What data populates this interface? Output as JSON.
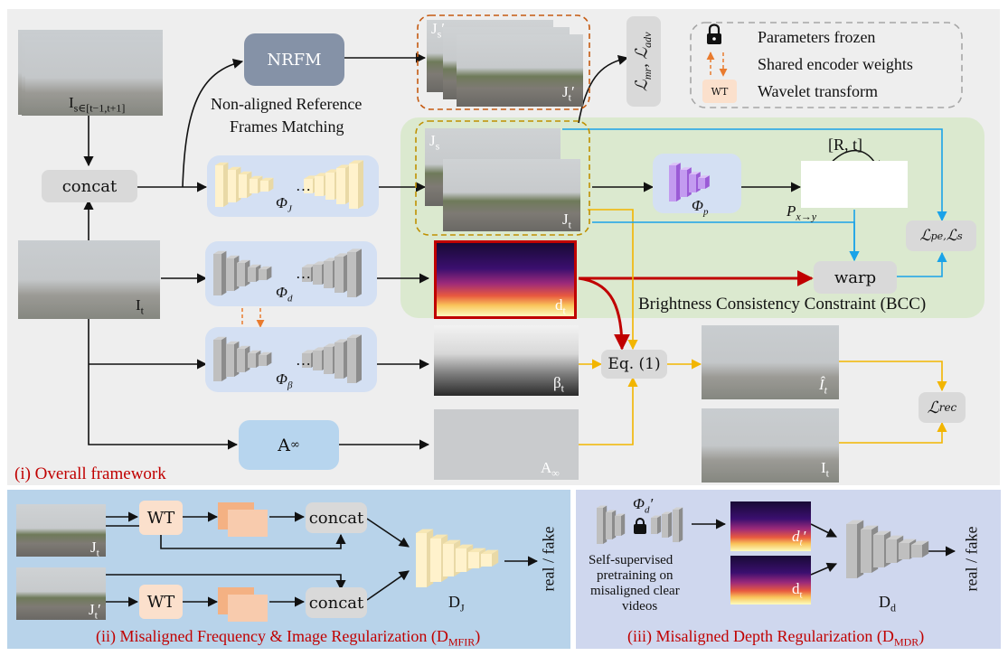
{
  "panels": {
    "main_caption": "(i) Overall framework",
    "bcc_caption": "Brightness Consistency Constraint (BCC)",
    "mfir_caption": "(ii) Misaligned Frequency & Image Regularization  (D",
    "mfir_sub": "MFIR",
    "mdr_caption": "(iii) Misaligned Depth Regularization (D",
    "mdr_sub": "MDR"
  },
  "legend": {
    "frozen": "Parameters frozen",
    "shared": "Shared encoder weights",
    "wavelet": "Wavelet transform",
    "wt_badge": "WT"
  },
  "nodes": {
    "nrfm": "NRFM",
    "nrfm_desc_line1": "Non-aligned Reference",
    "nrfm_desc_line2": "Frames Matching",
    "concat": "concat",
    "phi_j": "Φ",
    "phi_j_sub": "J",
    "phi_d": "Φ",
    "phi_d_sub": "d",
    "phi_beta": "Φ",
    "phi_beta_sub": "β",
    "phi_p": "Φ",
    "phi_p_sub": "p",
    "a_inf": "A",
    "a_inf_sym": "∞",
    "eq1": "Eq. (1)",
    "warp": "warp",
    "pose": "[R, t]",
    "proj": "P",
    "proj_sub": "x→y",
    "loss_mr_adv": "ℒ",
    "loss_pe_s": "ℒ",
    "loss_rec": "ℒ",
    "loss_rec_sub": "rec",
    "loss_pe_sub": "pe,",
    "loss_s_sub": "s",
    "loss_mr_sub": "mr",
    "loss_adv_sub": "adv",
    "dots": "…"
  },
  "images": {
    "i_seq": "I",
    "i_seq_sub": "s∈[t−1,t+1]",
    "it": "I",
    "it_sub": "t",
    "js_prime": "J",
    "js_prime_sub": "s",
    "jt_prime": "J",
    "jt_prime_sub": "t",
    "js": "J",
    "js_sub": "s",
    "jt": "J",
    "jt_sub": "t",
    "dt": "d",
    "dt_sub": "t",
    "beta_t": "β",
    "beta_t_sub": "t",
    "a_inf": "A",
    "a_inf_sym": "∞",
    "ihat": "Î",
    "ihat_sub": "t",
    "it2": "I",
    "it2_sub": "t"
  },
  "bottom_left": {
    "jt": "J",
    "jt_sub": "t",
    "jt_prime": "J",
    "jt_prime_sub": "t",
    "wt": "WT",
    "concat": "concat",
    "dj": "D",
    "dj_sub": "J",
    "output": "real / fake"
  },
  "bottom_right": {
    "phi_d_prime": "Φ",
    "phi_d_prime_sub": "d",
    "pretrain_line1": "Self-supervised",
    "pretrain_line2": "pretraining on",
    "pretrain_line3": "misaligned clear",
    "pretrain_line4": "videos",
    "dt_prime": "d",
    "dt_prime_sub": "t",
    "dt": "d",
    "dt_sub": "t",
    "dd": "D",
    "dd_sub": "d",
    "output": "real / fake"
  },
  "colors": {
    "main_bg": "#eeeeee",
    "bcc_bg": "#dbe9cf",
    "encoder_bg": "#d4e0f3",
    "nrfm_fill": "#8592a7",
    "a_inf_fill": "#b7d5ee",
    "node_gray": "#d9d9d9",
    "bottom_left_bg": "#b8d3ea",
    "bottom_right_bg": "#cfd7ee",
    "caption_red": "#c00000",
    "arrow_red": "#c00000",
    "arrow_yellow": "#f2b500",
    "arrow_blue": "#1aa3e8",
    "arrow_orange": "#e97b2e",
    "wt_fill": "#fbe0cc"
  }
}
